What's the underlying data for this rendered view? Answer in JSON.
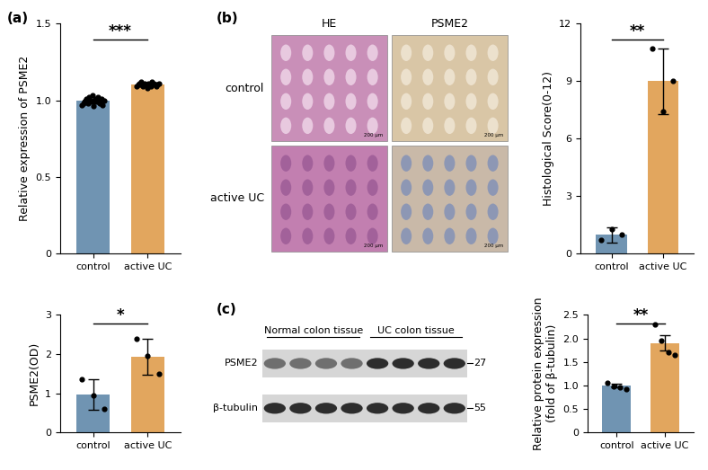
{
  "panel_labels": [
    "(a)",
    "(b)",
    "(c)"
  ],
  "histology": {
    "column_titles": [
      "HE",
      "PSME2"
    ],
    "row_labels": [
      "control",
      "active UC"
    ],
    "scale_bar": "200 μm"
  },
  "western_blot": {
    "group_labels": [
      "Normal colon tissue",
      "UC colon tissue"
    ],
    "rows": [
      {
        "label": "PSME2",
        "kda": 27
      },
      {
        "label": "β-tubulin",
        "kda": 55
      }
    ]
  },
  "chart_data": [
    {
      "type": "bar",
      "y_label": "Relative expression of PSME2",
      "categories": [
        "control",
        "active UC"
      ],
      "values": [
        1.0,
        1.1
      ],
      "errors": [
        0.02,
        0.01
      ],
      "points": [
        [
          0.97,
          0.98,
          0.99,
          1.0,
          1.01,
          0.98,
          1.02,
          0.99,
          1.0,
          1.03,
          0.96,
          1.0,
          1.01,
          0.99,
          1.02,
          0.98,
          1.0,
          1.01,
          0.97,
          1.0
        ],
        [
          1.09,
          1.1,
          1.11,
          1.1,
          1.12,
          1.09,
          1.1,
          1.11,
          1.1,
          1.08,
          1.11,
          1.1,
          1.09,
          1.12,
          1.1,
          1.11,
          1.1,
          1.09,
          1.1,
          1.11
        ]
      ],
      "colors": [
        "#7094b2",
        "#e2a65e"
      ],
      "annotation": "***",
      "ylim": [
        0,
        1.5
      ],
      "yticks": [
        0,
        0.5,
        1.0,
        1.5
      ]
    },
    {
      "type": "bar",
      "y_label": "Histological Score(0-12)",
      "categories": [
        "control",
        "active UC"
      ],
      "values": [
        1.0,
        9.0
      ],
      "errors": [
        0.4,
        1.7
      ],
      "points": [
        [
          0.7,
          1.3,
          1.0
        ],
        [
          10.7,
          7.4,
          9.0
        ]
      ],
      "colors": [
        "#7094b2",
        "#e2a65e"
      ],
      "annotation": "**",
      "ylim": [
        0,
        12
      ],
      "yticks": [
        0,
        3,
        6,
        9,
        12
      ]
    },
    {
      "type": "bar",
      "y_label": "PSME2(OD)",
      "categories": [
        "control",
        "active UC"
      ],
      "values": [
        0.97,
        1.93
      ],
      "errors": [
        0.39,
        0.45
      ],
      "points": [
        [
          1.35,
          0.95,
          0.6
        ],
        [
          2.4,
          1.95,
          1.5
        ]
      ],
      "colors": [
        "#7094b2",
        "#e2a65e"
      ],
      "annotation": "*",
      "ylim": [
        0,
        3
      ],
      "yticks": [
        0,
        1,
        2,
        3
      ]
    },
    {
      "type": "bar",
      "y_label": "Relative protein expression\n(fold of β-tubulin)",
      "categories": [
        "control",
        "active UC"
      ],
      "values": [
        1.0,
        1.9
      ],
      "errors": [
        0.04,
        0.16
      ],
      "points": [
        [
          1.05,
          0.98,
          0.95,
          0.92
        ],
        [
          2.3,
          1.95,
          1.7,
          1.65
        ]
      ],
      "colors": [
        "#7094b2",
        "#e2a65e"
      ],
      "annotation": "**",
      "ylim": [
        0,
        2.5
      ],
      "yticks": [
        0,
        0.5,
        1.0,
        1.5,
        2.0,
        2.5
      ]
    }
  ]
}
